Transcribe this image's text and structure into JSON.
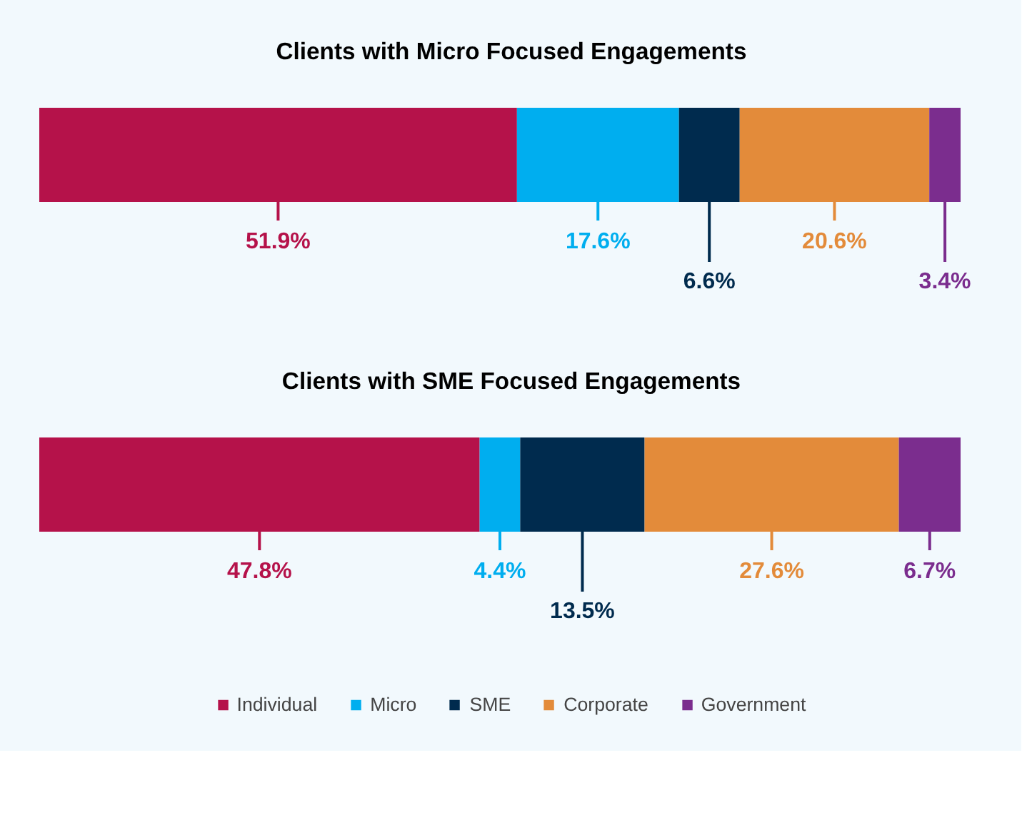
{
  "chart_data": [
    {
      "type": "bar",
      "orientation": "horizontal",
      "stacked": true,
      "title": "Clients with Micro Focused Engagements",
      "categories": [
        null
      ],
      "legend": false,
      "series": [
        {
          "color": "#b5124a",
          "values": [
            51.9
          ],
          "value_labels": [
            "51.9%"
          ]
        },
        {
          "color": "#00aeef",
          "values": [
            17.6
          ],
          "value_labels": [
            "17.6%"
          ]
        },
        {
          "color": "#002b4e",
          "values": [
            6.6
          ],
          "value_labels": [
            "6.6%"
          ]
        },
        {
          "color": "#e38b3a",
          "values": [
            20.6
          ],
          "value_labels": [
            "20.6%"
          ]
        },
        {
          "color": "#7b2d8e",
          "values": [
            3.4
          ],
          "value_labels": [
            "3.4%"
          ]
        }
      ]
    },
    {
      "type": "bar",
      "orientation": "horizontal",
      "stacked": true,
      "title": "Clients with SME Focused Engagements",
      "categories": [
        null
      ],
      "legend": "bottom",
      "series": [
        {
          "name": "Individual",
          "color": "#b5124a",
          "values": [
            47.8
          ],
          "value_labels": [
            "47.8%"
          ]
        },
        {
          "name": "Micro",
          "color": "#00aeef",
          "values": [
            4.4
          ],
          "value_labels": [
            "4.4%"
          ]
        },
        {
          "name": "SME",
          "color": "#002b4e",
          "values": [
            13.5
          ],
          "value_labels": [
            "13.5%"
          ]
        },
        {
          "name": "Corporate",
          "color": "#e38b3a",
          "values": [
            27.6
          ],
          "value_labels": [
            "27.6%"
          ]
        },
        {
          "name": "Government",
          "color": "#7b2d8e",
          "values": [
            6.7
          ],
          "value_labels": [
            "6.7%"
          ]
        }
      ]
    }
  ]
}
